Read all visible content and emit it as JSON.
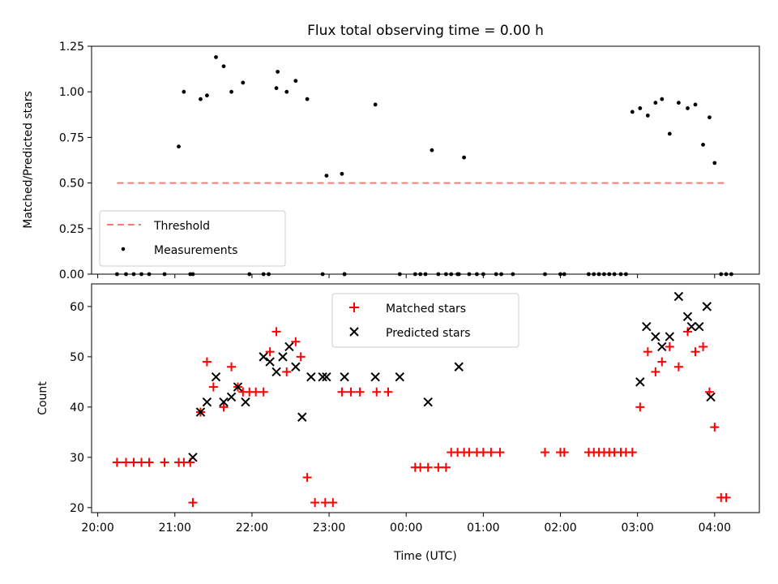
{
  "figure": {
    "title": "Flux total observing time = 0.00 h"
  },
  "chart_data": [
    {
      "type": "scatter",
      "xlabel": "",
      "ylabel": "Matched/Predicted stars",
      "xlim_hours": [
        19.92,
        28.58
      ],
      "ylim": [
        0,
        1.25
      ],
      "yticks": [
        0.0,
        0.25,
        0.5,
        0.75,
        1.0,
        1.25
      ],
      "ytick_labels": [
        "0.00",
        "0.25",
        "0.50",
        "0.75",
        "1.00",
        "1.25"
      ],
      "legend_position": "lower-left",
      "threshold": {
        "name": "Threshold",
        "y": 0.5,
        "x_range_hours": [
          20.25,
          28.15
        ],
        "color": "#ff7777",
        "style": "dashed"
      },
      "series": [
        {
          "name": "Measurements",
          "color": "#000000",
          "marker": "dot",
          "x": [
            "20:15",
            "20:22",
            "20:28",
            "20:34",
            "20:40",
            "20:52",
            "21:03",
            "21:07",
            "21:12",
            "21:14",
            "21:20",
            "21:25",
            "21:32",
            "21:38",
            "21:44",
            "21:53",
            "21:58",
            "22:09",
            "22:13",
            "22:19",
            "22:20",
            "22:27",
            "22:34",
            "22:43",
            "22:55",
            "22:58",
            "23:10",
            "23:12",
            "23:12",
            "23:36",
            "23:55",
            "00:07",
            "00:11",
            "00:15",
            "00:20",
            "00:25",
            "00:31",
            "00:35",
            "00:40",
            "00:41",
            "00:45",
            "00:49",
            "00:55",
            "01:00",
            "01:10",
            "01:14",
            "01:23",
            "01:48",
            "02:00",
            "02:03",
            "02:22",
            "02:26",
            "02:30",
            "02:34",
            "02:38",
            "02:42",
            "02:47",
            "02:51",
            "02:56",
            "03:02",
            "03:08",
            "03:14",
            "03:19",
            "03:25",
            "03:32",
            "03:39",
            "03:45",
            "03:51",
            "03:56",
            "04:00",
            "04:05",
            "04:09",
            "04:13"
          ],
          "y": [
            0,
            0,
            0,
            0,
            0,
            0,
            0.7,
            1.0,
            0,
            0,
            0.96,
            0.98,
            1.19,
            1.14,
            1.0,
            1.05,
            0,
            0,
            0,
            1.02,
            1.11,
            1.0,
            1.06,
            0.96,
            0,
            0.54,
            0.55,
            0,
            0,
            0.93,
            0,
            0,
            0,
            0,
            0.68,
            0,
            0,
            0,
            0,
            0,
            0.64,
            0,
            0,
            0,
            0,
            0,
            0,
            0,
            0,
            0,
            0,
            0,
            0,
            0,
            0,
            0,
            0,
            0,
            0.89,
            0.91,
            0.87,
            0.94,
            0.96,
            0.77,
            0.94,
            0.91,
            0.93,
            0.71,
            0.86,
            0.61,
            0,
            0,
            0
          ]
        }
      ]
    },
    {
      "type": "scatter",
      "xlabel": "Time (UTC)",
      "ylabel": "Count",
      "xticks": [
        "20:00",
        "21:00",
        "22:00",
        "23:00",
        "00:00",
        "01:00",
        "02:00",
        "03:00",
        "04:00"
      ],
      "ylim": [
        19,
        64.5
      ],
      "yticks": [
        20,
        30,
        40,
        50,
        60
      ],
      "ytick_labels": [
        "20",
        "30",
        "40",
        "50",
        "60"
      ],
      "legend_position": "upper-center",
      "series": [
        {
          "name": "Matched stars",
          "color": "#ff0000",
          "marker": "plus",
          "x": [
            "20:15",
            "20:22",
            "20:28",
            "20:34",
            "20:40",
            "20:52",
            "21:03",
            "21:07",
            "21:12",
            "21:14",
            "21:20",
            "21:25",
            "21:30",
            "21:38",
            "21:44",
            "21:49",
            "21:53",
            "21:58",
            "22:03",
            "22:09",
            "22:14",
            "22:19",
            "22:27",
            "22:34",
            "22:38",
            "22:43",
            "22:49",
            "22:57",
            "23:03",
            "23:10",
            "23:17",
            "23:24",
            "23:37",
            "23:46",
            "00:07",
            "00:11",
            "00:17",
            "00:25",
            "00:31",
            "00:35",
            "00:40",
            "00:45",
            "00:49",
            "00:55",
            "01:00",
            "01:06",
            "01:13",
            "01:48",
            "02:00",
            "02:03",
            "02:22",
            "02:26",
            "02:30",
            "02:34",
            "02:38",
            "02:42",
            "02:47",
            "02:51",
            "02:56",
            "03:02",
            "03:08",
            "03:14",
            "03:19",
            "03:25",
            "03:32",
            "03:39",
            "03:45",
            "03:51",
            "03:56",
            "04:00",
            "04:05",
            "04:09"
          ],
          "y": [
            29,
            29,
            29,
            29,
            29,
            29,
            29,
            29,
            29,
            21,
            39,
            49,
            44,
            40,
            48,
            44,
            43,
            43,
            43,
            43,
            51,
            55,
            47,
            53,
            50,
            26,
            21,
            21,
            21,
            43,
            43,
            43,
            43,
            43,
            28,
            28,
            28,
            28,
            28,
            31,
            31,
            31,
            31,
            31,
            31,
            31,
            31,
            31,
            31,
            31,
            31,
            31,
            31,
            31,
            31,
            31,
            31,
            31,
            31,
            40,
            51,
            47,
            49,
            52,
            48,
            55,
            51,
            52,
            43,
            36,
            22,
            22
          ]
        },
        {
          "name": "Predicted stars",
          "color": "#000000",
          "marker": "x",
          "x": [
            "21:14",
            "21:20",
            "21:25",
            "21:32",
            "21:38",
            "21:44",
            "21:49",
            "21:55",
            "22:09",
            "22:14",
            "22:19",
            "22:24",
            "22:29",
            "22:34",
            "22:39",
            "22:46",
            "22:55",
            "22:58",
            "23:12",
            "23:36",
            "23:55",
            "00:17",
            "00:41",
            "03:02",
            "03:07",
            "03:14",
            "03:19",
            "03:25",
            "03:32",
            "03:39",
            "03:42",
            "03:48",
            "03:54",
            "03:57"
          ],
          "y": [
            30,
            39,
            41,
            46,
            41,
            42,
            44,
            41,
            50,
            49,
            47,
            50,
            52,
            48,
            38,
            46,
            46,
            46,
            46,
            46,
            46,
            41,
            48,
            45,
            56,
            54,
            52,
            54,
            62,
            58,
            56,
            56,
            60,
            42
          ]
        }
      ]
    }
  ]
}
